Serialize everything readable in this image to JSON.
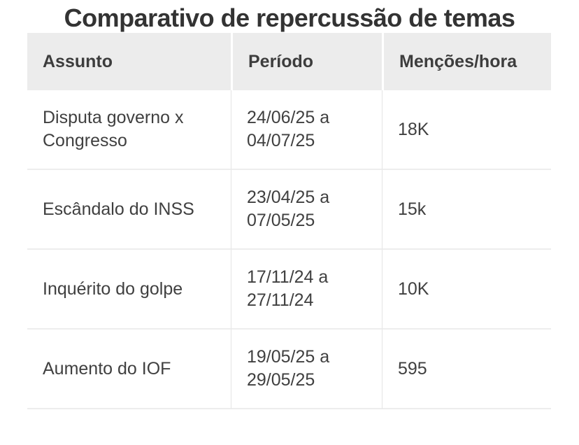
{
  "title": "Comparativo de repercussão de temas",
  "chart_data": {
    "type": "table",
    "title": "Comparativo de repercussão de temas",
    "columns": [
      "Assunto",
      "Período",
      "Menções/hora"
    ],
    "rows": [
      [
        "Disputa governo x Congresso",
        "24/06/25 a 04/07/25",
        "18K"
      ],
      [
        "Escândalo do INSS",
        "23/04/25 a 07/05/25",
        "15k"
      ],
      [
        "Inquérito do golpe",
        "17/11/24 a 27/11/24",
        "10K"
      ],
      [
        "Aumento do IOF",
        "19/05/25 a 29/05/25",
        "595"
      ]
    ]
  },
  "colors": {
    "title_text": "#333333",
    "header_bg": "#ececec",
    "header_text": "#3d3d3d",
    "body_text": "#404040",
    "row_divider": "#ededed",
    "column_divider": "#e4e4e4",
    "background": "#ffffff"
  }
}
